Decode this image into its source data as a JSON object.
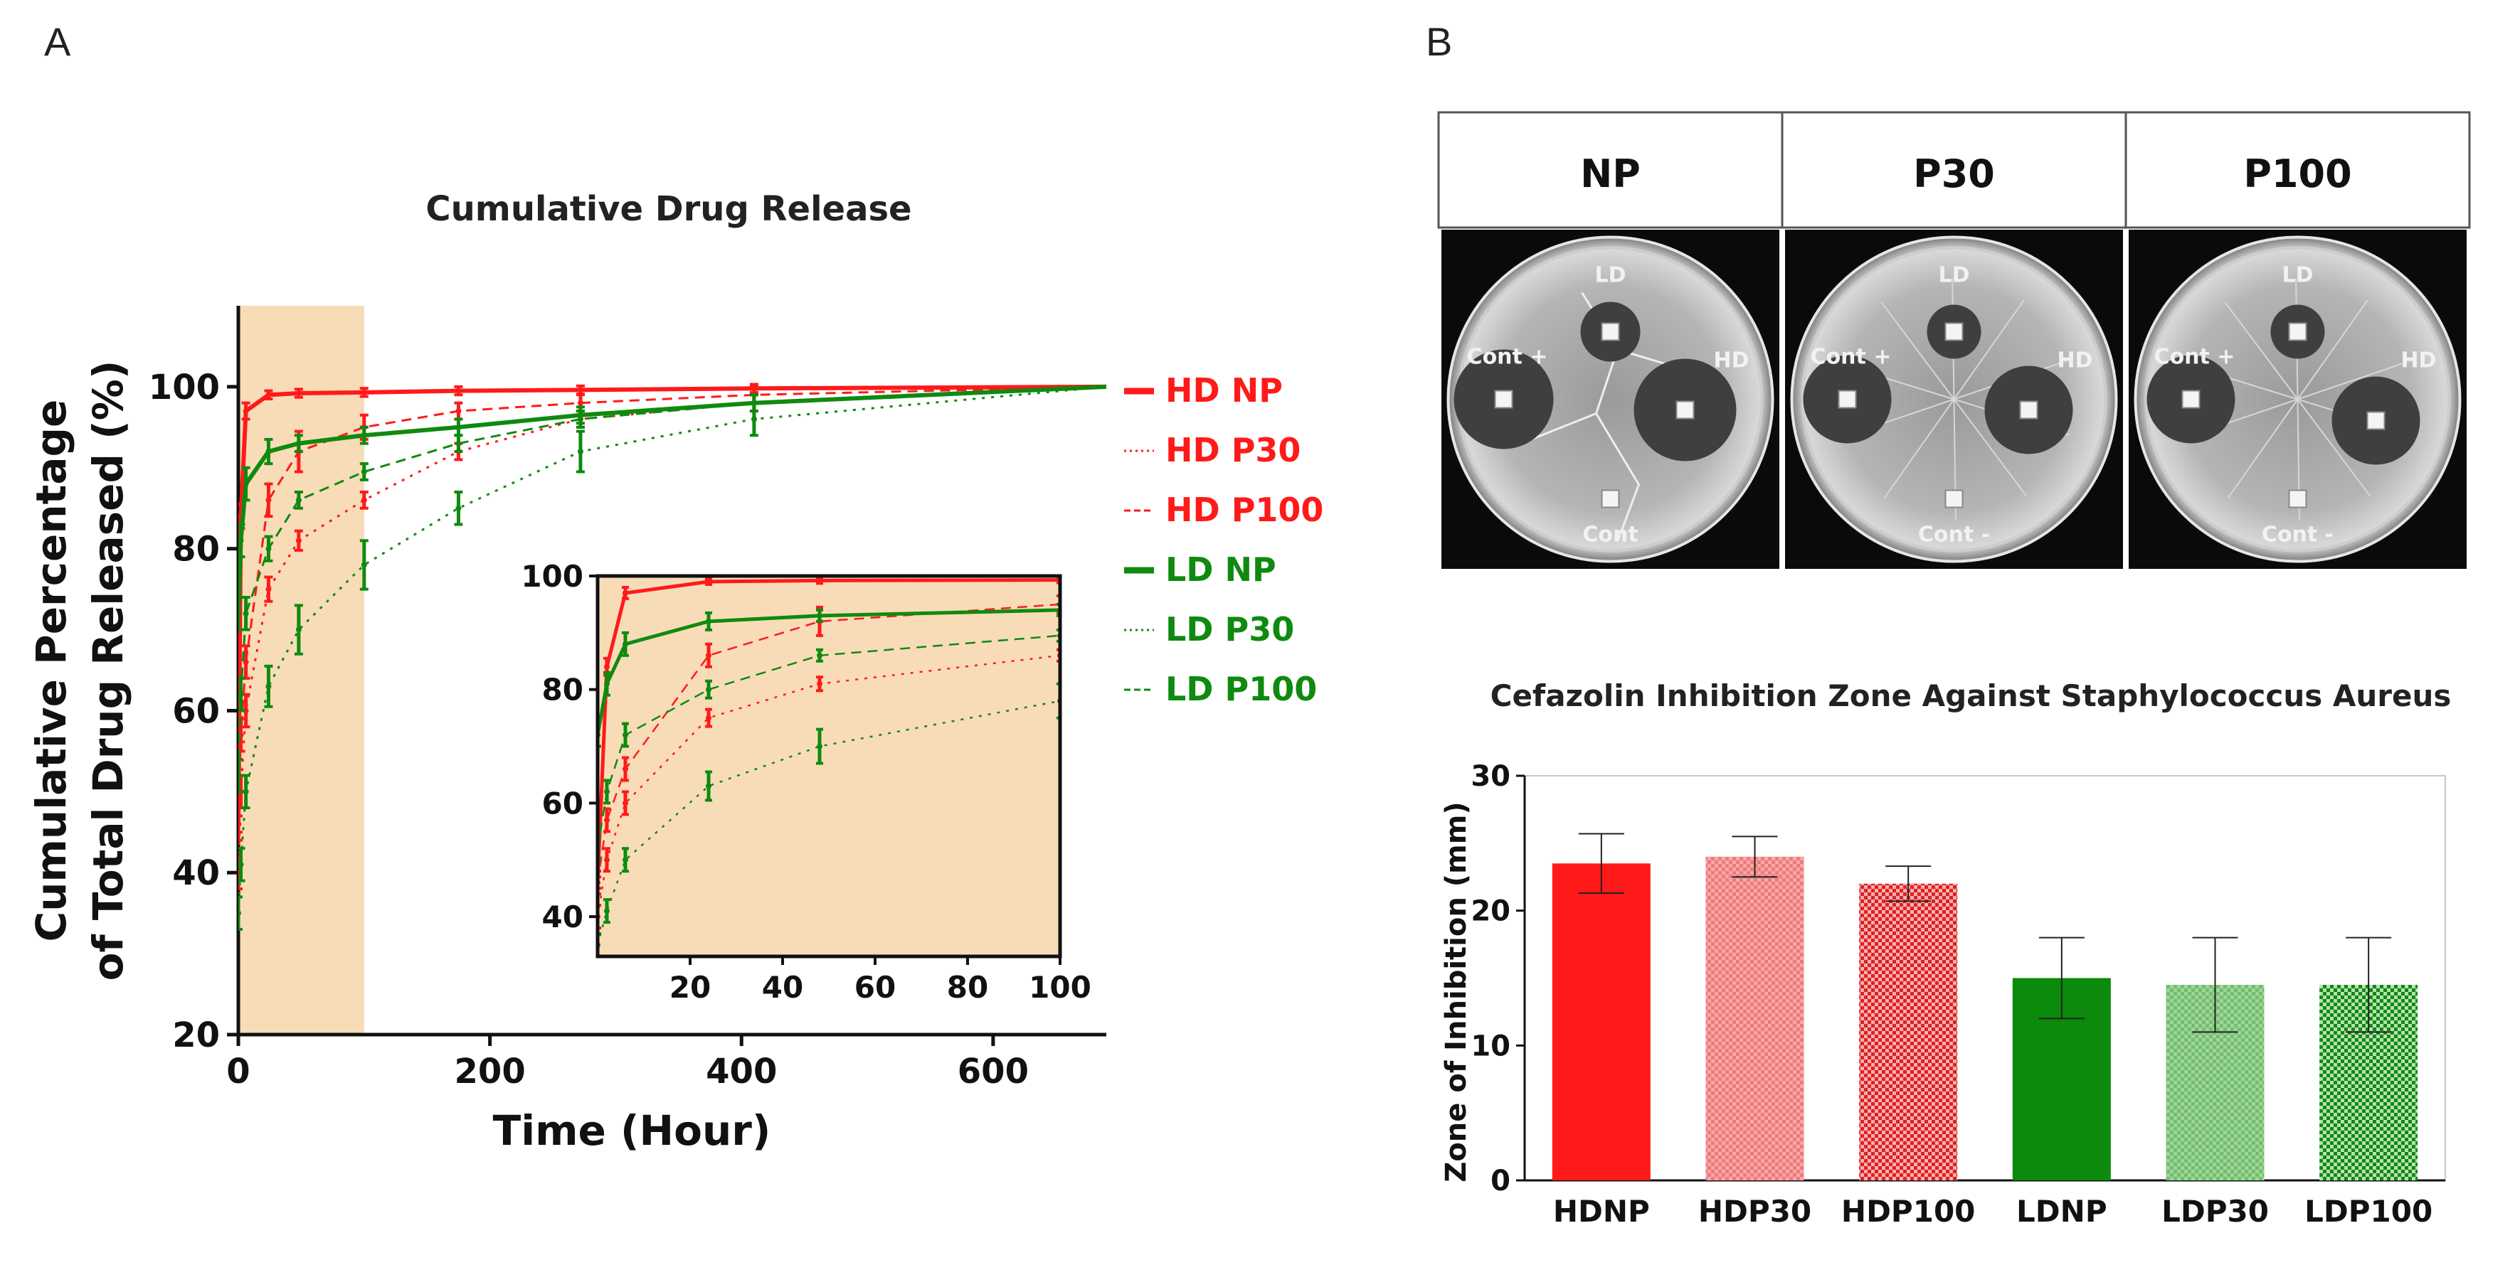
{
  "panels": {
    "a": "A",
    "b": "B"
  },
  "colors": {
    "hd": "#ff1a1a",
    "ld": "#0f8a0f",
    "ld_light": "#3a9a2a",
    "shade": "#f8dcb8"
  },
  "chart_data": [
    {
      "type": "line",
      "title": "Cumulative Drug Release",
      "xlabel": "Time (Hour)",
      "ylabel_line1": "Cumulative Percentage",
      "ylabel_line2": "of Total Drug Released (%)",
      "xlim": [
        0,
        690
      ],
      "ylim": [
        20,
        110
      ],
      "xticks": [
        "0",
        "200",
        "400",
        "600"
      ],
      "xtick_values": [
        0,
        200,
        400,
        600
      ],
      "yticks": [
        "20",
        "40",
        "60",
        "80",
        "100"
      ],
      "ytick_values": [
        20,
        40,
        60,
        80,
        100
      ],
      "shaded_region": [
        0,
        100
      ],
      "legend_position": "right",
      "series": [
        {
          "name": "HD NP",
          "group": "hd",
          "style": "solid",
          "x": [
            0,
            2,
            6,
            24,
            48,
            100,
            175,
            272,
            410,
            690
          ],
          "y": [
            46,
            84,
            97,
            99,
            99.2,
            99.3,
            99.5,
            99.6,
            99.8,
            100
          ],
          "err": [
            1,
            1.5,
            1,
            0.5,
            0.5,
            0.5,
            0.5,
            0.5,
            0.5,
            0
          ]
        },
        {
          "name": "HD P30",
          "group": "hd",
          "style": "dotted",
          "x": [
            0,
            2,
            6,
            24,
            48,
            100,
            175,
            272,
            410,
            690
          ],
          "y": [
            40,
            50,
            60,
            75,
            81,
            86,
            92,
            96,
            98,
            100
          ],
          "err": [
            2,
            2,
            2,
            1.5,
            1.2,
            1,
            1,
            1,
            1,
            0
          ]
        },
        {
          "name": "HD P100",
          "group": "hd",
          "style": "dashed",
          "x": [
            0,
            2,
            6,
            24,
            48,
            100,
            175,
            272,
            410,
            690
          ],
          "y": [
            46,
            57,
            66,
            86,
            92,
            95,
            97,
            98,
            99,
            100
          ],
          "err": [
            2,
            2,
            2,
            2,
            2.5,
            1.5,
            1,
            1,
            1,
            0
          ]
        },
        {
          "name": "LD NP",
          "group": "ld",
          "style": "solid",
          "x": [
            0,
            2,
            6,
            24,
            48,
            100,
            175,
            272,
            410,
            690
          ],
          "y": [
            72,
            81,
            88,
            92,
            93,
            94,
            95,
            96.5,
            98,
            100
          ],
          "err": [
            2,
            2,
            2,
            1.5,
            1,
            1,
            1,
            1,
            1,
            0
          ]
        },
        {
          "name": "LD P30",
          "group": "ld",
          "style": "dotted",
          "x": [
            0,
            2,
            6,
            24,
            48,
            100,
            175,
            272,
            410,
            690
          ],
          "y": [
            35,
            41,
            50,
            63,
            70,
            78,
            85,
            92,
            96,
            100
          ],
          "err": [
            2,
            2,
            2,
            2.5,
            3,
            3,
            2,
            2.5,
            2,
            0
          ]
        },
        {
          "name": "LD P100",
          "group": "ld",
          "style": "dashed",
          "x": [
            0,
            2,
            6,
            24,
            48,
            100,
            175,
            272,
            410,
            690
          ],
          "y": [
            52,
            62,
            72,
            80,
            86,
            89.5,
            93,
            96,
            98,
            100
          ],
          "err": [
            2,
            2,
            2,
            1.5,
            1,
            1,
            1,
            1,
            1,
            0
          ]
        }
      ],
      "inset": {
        "xlim": [
          0,
          100
        ],
        "ylim": [
          33,
          100
        ],
        "xticks": [
          "20",
          "40",
          "60",
          "80",
          "100"
        ],
        "xtick_values": [
          20,
          40,
          60,
          80,
          100
        ],
        "yticks": [
          "40",
          "60",
          "80",
          "100"
        ],
        "ytick_values": [
          40,
          60,
          80,
          100
        ]
      }
    },
    {
      "type": "bar",
      "title": "Cefazolin Inhibition Zone Against Staphylococcus Aureus",
      "xlabel": "",
      "ylabel": "Zone of Inhibition (mm)",
      "ylim": [
        0,
        30
      ],
      "yticks": [
        "0",
        "10",
        "20",
        "30"
      ],
      "ytick_values": [
        0,
        10,
        20,
        30
      ],
      "categories": [
        "HDNP",
        "HDP30",
        "HDP100",
        "LDNP",
        "LDP30",
        "LDP100"
      ],
      "values": [
        23.5,
        24,
        22,
        15,
        14.5,
        14.5
      ],
      "errors": [
        2.2,
        1.5,
        1.3,
        3,
        3.5,
        3.5
      ],
      "fills": [
        "hd_solid",
        "hd_light",
        "hd_checker",
        "ld_solid",
        "ld_light",
        "ld_checker"
      ]
    }
  ],
  "plates": {
    "headers": [
      "NP",
      "P30",
      "P100"
    ],
    "labels": [
      {
        "ld": "LD",
        "hd": "HD",
        "pos": "Cont +",
        "neg": "Cont"
      },
      {
        "ld": "LD",
        "hd": "HD",
        "pos": "Cont +",
        "neg": "Cont -"
      },
      {
        "ld": "LD",
        "hd": "HD",
        "pos": "Cont +",
        "neg": "Cont -"
      }
    ]
  }
}
